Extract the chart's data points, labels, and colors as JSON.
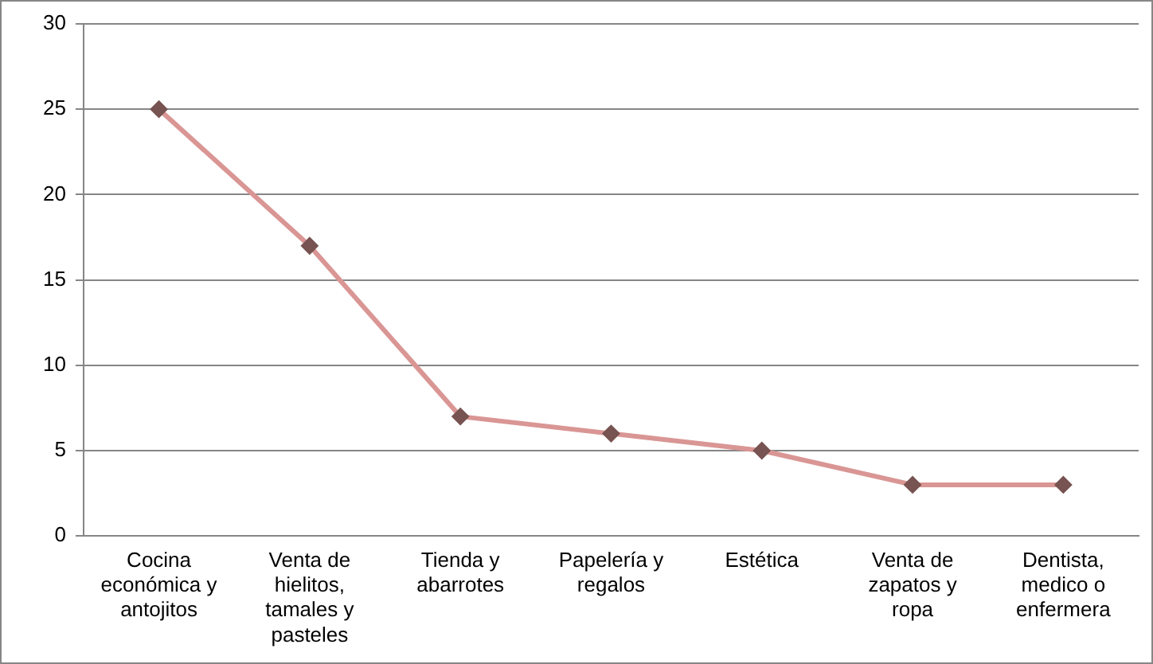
{
  "chart_data": {
    "type": "line",
    "categories": [
      "Cocina económica y antojitos",
      "Venta de hielitos, tamales y pasteles",
      "Tienda y abarrotes",
      "Papelería y regalos",
      "Estética",
      "Venta de zapatos y ropa",
      "Dentista, medico o enfermera"
    ],
    "series": [
      {
        "color": "#d99694",
        "values": [
          25,
          17,
          7,
          6,
          5,
          3,
          3
        ]
      }
    ],
    "ylim": [
      0,
      30
    ],
    "yticks": [
      0,
      5,
      10,
      15,
      20,
      25,
      30
    ],
    "grid": "y",
    "legend": false,
    "marker": "diamond",
    "line_style": "solid"
  }
}
